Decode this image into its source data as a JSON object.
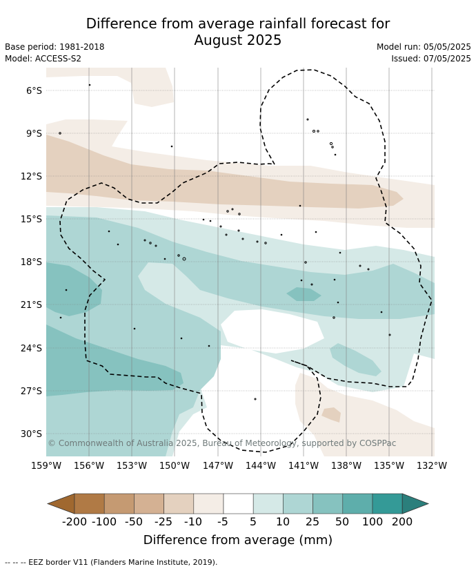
{
  "title_line1": "Difference from average rainfall forecast for",
  "title_line2": "August 2025",
  "base_period": "Base period: 1981-2018",
  "model": "Model: ACCESS-S2",
  "model_run": "Model run: 05/05/2025",
  "issued": "Issued: 07/05/2025",
  "latitude_labels": [
    "6°S",
    "9°S",
    "12°S",
    "15°S",
    "18°S",
    "21°S",
    "24°S",
    "27°S",
    "30°S"
  ],
  "longitude_labels": [
    "159°W",
    "156°W",
    "153°W",
    "150°W",
    "147°W",
    "144°W",
    "141°W",
    "138°W",
    "135°W",
    "132°W"
  ],
  "copyright": "© Commonwealth of Australia 2025, Bureau of Meteorology, supported by COSPPac",
  "colorbar": {
    "ticks": [
      "-200",
      "-100",
      "-50",
      "-25",
      "-10",
      "-5",
      "5",
      "10",
      "25",
      "50",
      "100",
      "200"
    ],
    "title": "Difference from average (mm)",
    "colors": [
      "#a0682f",
      "#b07a45",
      "#c59a72",
      "#d4b193",
      "#e4d1bf",
      "#f4ede6",
      "#ffffff",
      "#d5e9e7",
      "#aed6d4",
      "#86c2bf",
      "#5eaeab",
      "#349a97",
      "#2b7f7c"
    ]
  },
  "footnote": "--  --  -- EEZ border V11 (Flanders Marine Institute, 2019)."
}
